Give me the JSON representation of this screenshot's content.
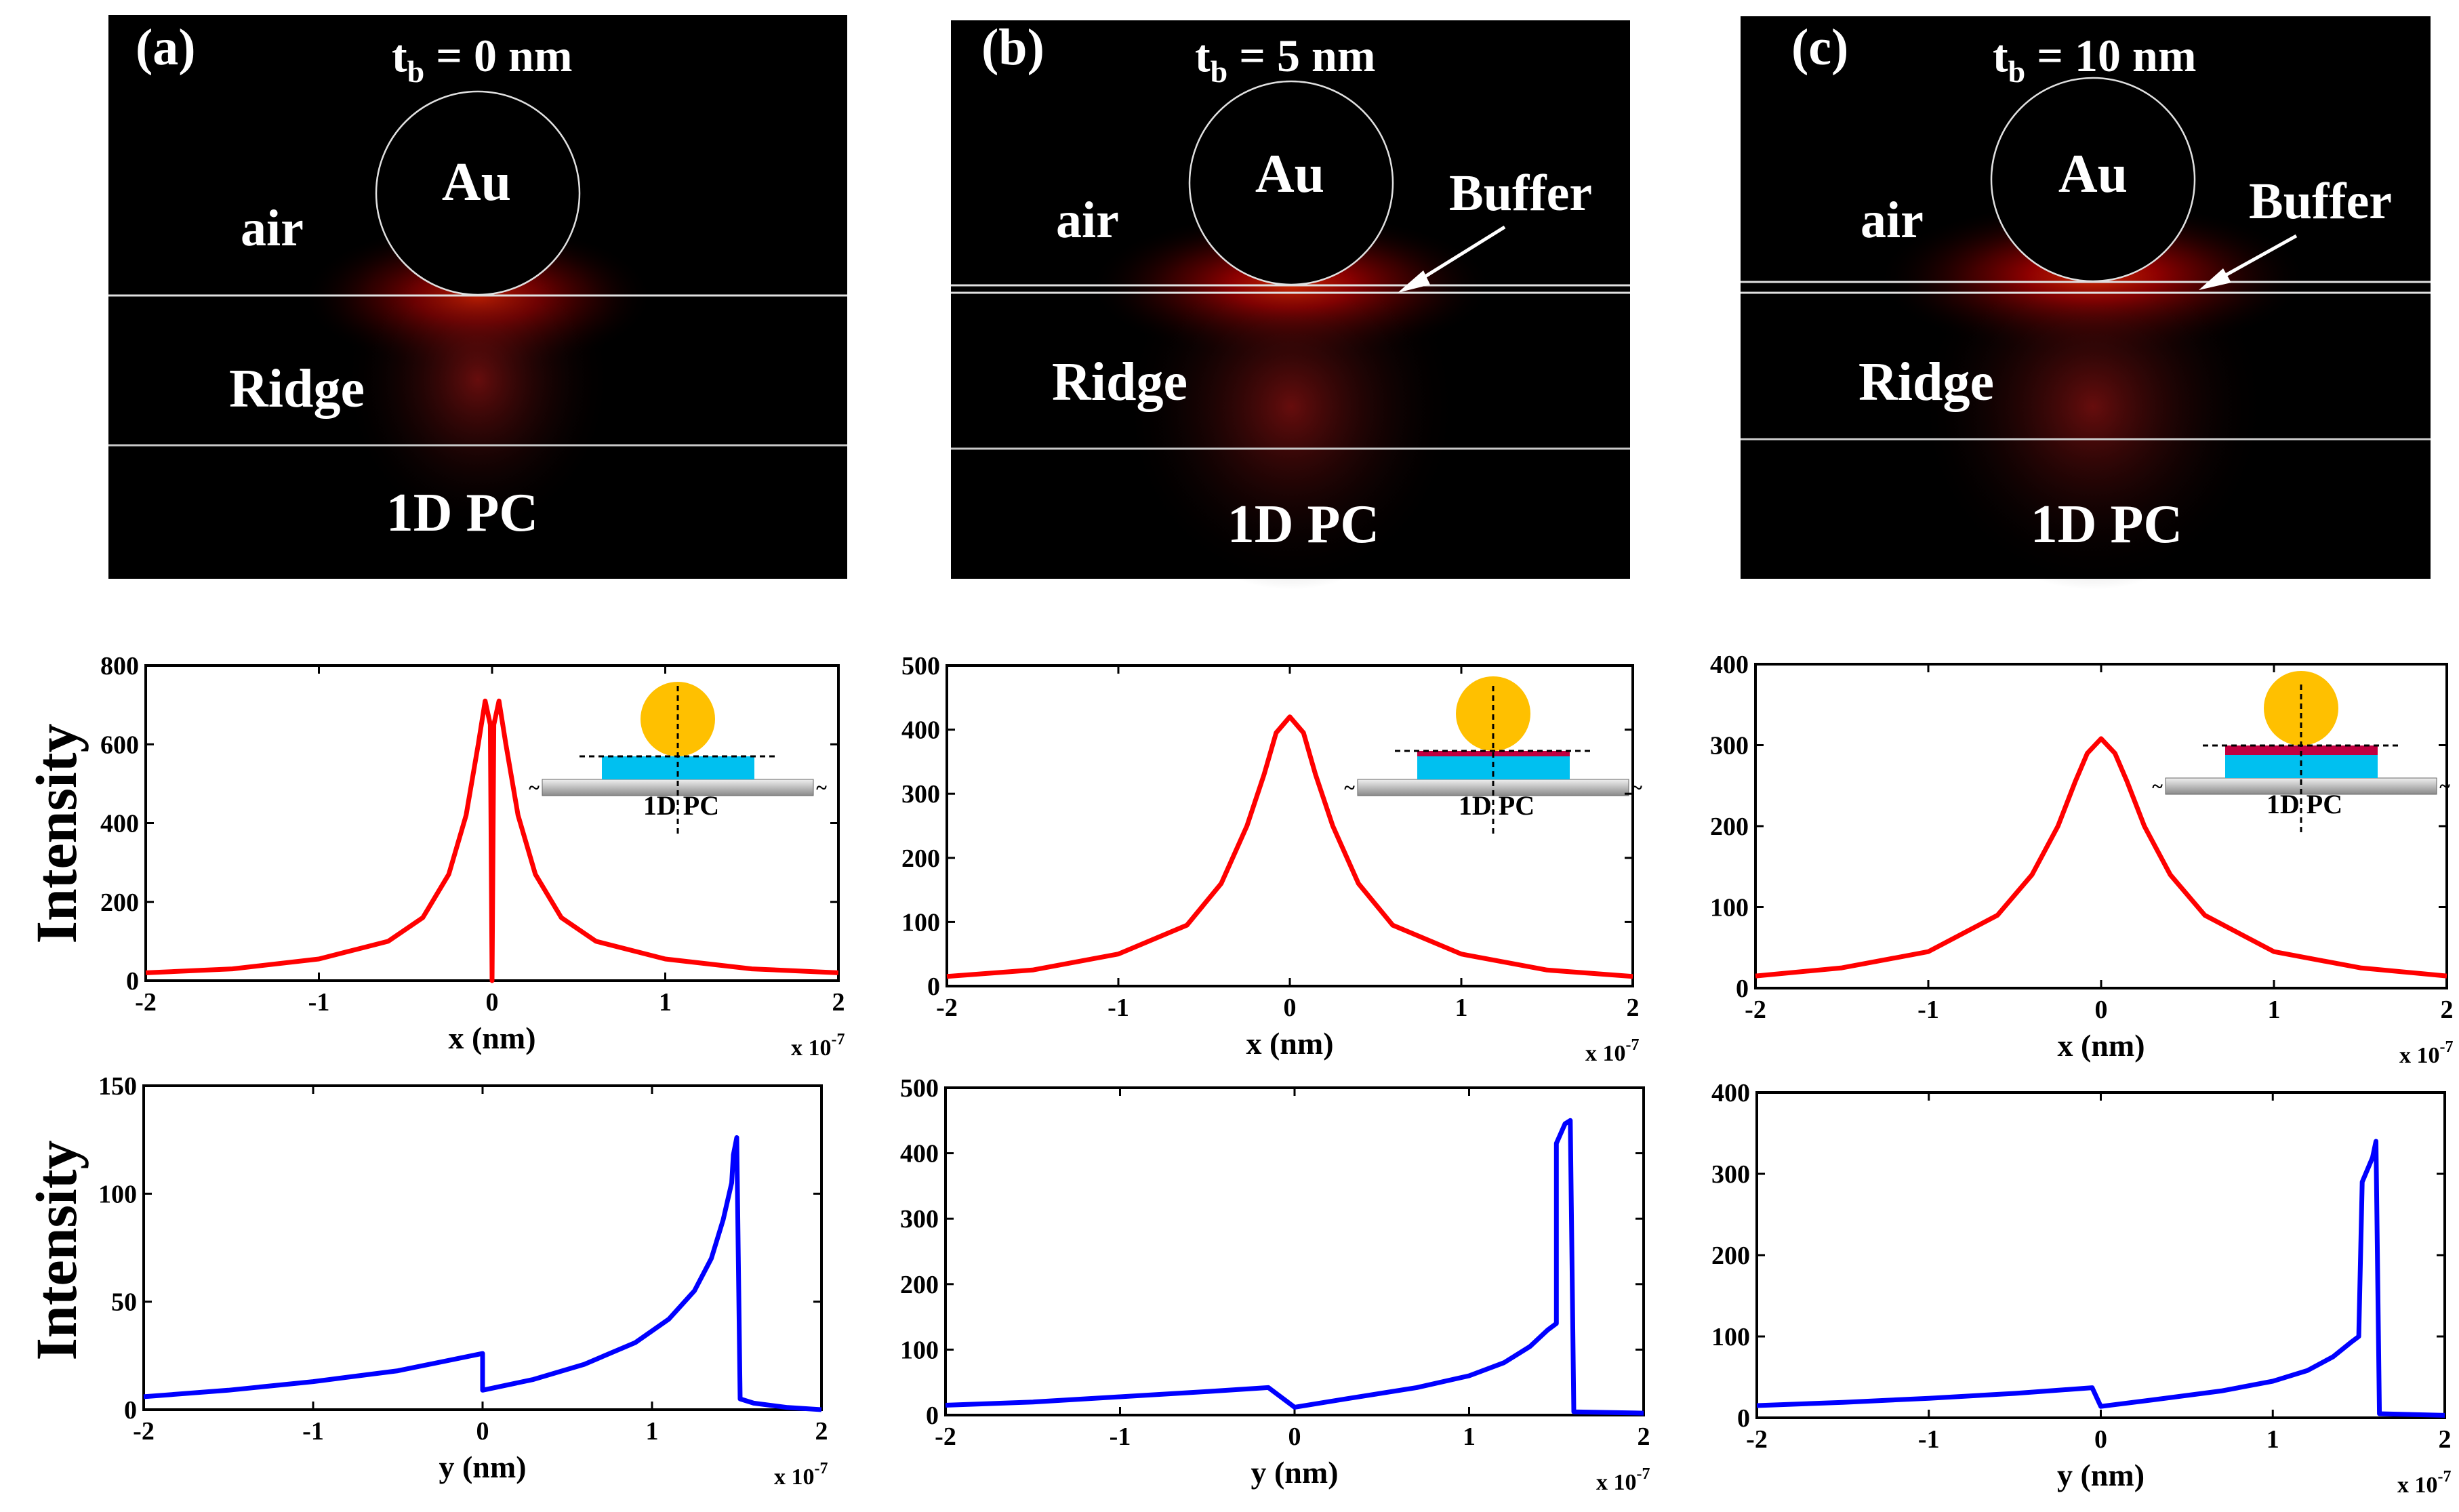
{
  "field_panels": [
    {
      "panel_label": "(a)",
      "thickness_label": "t",
      "thickness_sub": "b",
      "thickness_value": " = 0 nm",
      "regions": {
        "particle": "Au",
        "air": "air",
        "ridge": "Ridge",
        "substrate": "1D PC"
      },
      "buffer_label": null
    },
    {
      "panel_label": "(b)",
      "thickness_label": "t",
      "thickness_sub": "b",
      "thickness_value": " = 5 nm",
      "regions": {
        "particle": "Au",
        "air": "air",
        "ridge": "Ridge",
        "substrate": "1D PC"
      },
      "buffer_label": "Buffer"
    },
    {
      "panel_label": "(c)",
      "thickness_label": "t",
      "thickness_sub": "b",
      "thickness_value": " = 10 nm",
      "regions": {
        "particle": "Au",
        "air": "air",
        "ridge": "Ridge",
        "substrate": "1D PC"
      },
      "buffer_label": "Buffer"
    }
  ],
  "colors": {
    "field_bg": "#000000",
    "hotspot": "#ff1a00",
    "x_profile": "#ff0000",
    "y_profile": "#0000ff",
    "gold": "#ffc000",
    "ridge_fill": "#00c0f0",
    "buffer_fill": "#c00040",
    "substrate": "#c8c8c8"
  },
  "chart_data": [
    {
      "id": "x-profile-a",
      "type": "line",
      "xlabel": "x (nm)",
      "ylabel": "Intensity",
      "x_exponent": "x 10",
      "x_exponent_power": "-7",
      "xlim": [
        -2,
        2
      ],
      "ylim": [
        0,
        800
      ],
      "xticks": [
        "-2",
        "-1",
        "0",
        "1",
        "2"
      ],
      "yticks": [
        "0",
        "200",
        "400",
        "600",
        "800"
      ],
      "inset_label": "1D PC",
      "color": "#ff0000",
      "x": [
        -2,
        -1.5,
        -1,
        -0.6,
        -0.4,
        -0.25,
        -0.15,
        -0.08,
        -0.04,
        -0.01,
        0,
        0.01,
        0.04,
        0.08,
        0.15,
        0.25,
        0.4,
        0.6,
        1,
        1.5,
        2
      ],
      "y": [
        20,
        30,
        55,
        100,
        160,
        270,
        420,
        600,
        710,
        650,
        0,
        650,
        710,
        600,
        420,
        270,
        160,
        100,
        55,
        30,
        20
      ]
    },
    {
      "id": "x-profile-b",
      "type": "line",
      "xlabel": "x (nm)",
      "ylabel": "",
      "x_exponent": "x 10",
      "x_exponent_power": "-7",
      "xlim": [
        -2,
        2
      ],
      "ylim": [
        0,
        500
      ],
      "xticks": [
        "-2",
        "-1",
        "0",
        "1",
        "2"
      ],
      "yticks": [
        "0",
        "100",
        "200",
        "300",
        "400",
        "500"
      ],
      "inset_label": "1D PC",
      "color": "#ff0000",
      "x": [
        -2,
        -1.5,
        -1,
        -0.6,
        -0.4,
        -0.25,
        -0.15,
        -0.08,
        0,
        0.08,
        0.15,
        0.25,
        0.4,
        0.6,
        1,
        1.5,
        2
      ],
      "y": [
        15,
        25,
        50,
        95,
        160,
        250,
        330,
        395,
        420,
        395,
        330,
        250,
        160,
        95,
        50,
        25,
        15
      ]
    },
    {
      "id": "x-profile-c",
      "type": "line",
      "xlabel": "x (nm)",
      "ylabel": "",
      "x_exponent": "x 10",
      "x_exponent_power": "-7",
      "xlim": [
        -2,
        2
      ],
      "ylim": [
        0,
        400
      ],
      "xticks": [
        "-2",
        "-1",
        "0",
        "1",
        "2"
      ],
      "yticks": [
        "0",
        "100",
        "200",
        "300",
        "400"
      ],
      "inset_label": "1D PC",
      "color": "#ff0000",
      "x": [
        -2,
        -1.5,
        -1,
        -0.6,
        -0.4,
        -0.25,
        -0.15,
        -0.08,
        0,
        0.08,
        0.15,
        0.25,
        0.4,
        0.6,
        1,
        1.5,
        2
      ],
      "y": [
        15,
        25,
        45,
        90,
        140,
        200,
        255,
        290,
        308,
        290,
        255,
        200,
        140,
        90,
        45,
        25,
        15
      ]
    },
    {
      "id": "y-profile-a",
      "type": "line",
      "xlabel": "y (nm)",
      "ylabel": "Intensity",
      "x_exponent": "x 10",
      "x_exponent_power": "-7",
      "xlim": [
        -2,
        2
      ],
      "ylim": [
        0,
        150
      ],
      "xticks": [
        "-2",
        "-1",
        "0",
        "1",
        "2"
      ],
      "yticks": [
        "0",
        "50",
        "100",
        "150"
      ],
      "color": "#0000ff",
      "x": [
        -2,
        -1.5,
        -1,
        -0.5,
        0,
        0,
        0.3,
        0.6,
        0.9,
        1.1,
        1.25,
        1.35,
        1.42,
        1.47,
        1.48,
        1.5,
        1.52,
        1.6,
        1.8,
        2
      ],
      "y": [
        6,
        9,
        13,
        18,
        26,
        9,
        14,
        21,
        31,
        42,
        55,
        70,
        88,
        105,
        118,
        126,
        5,
        3,
        1,
        0
      ]
    },
    {
      "id": "y-profile-b",
      "type": "line",
      "xlabel": "y (nm)",
      "ylabel": "",
      "x_exponent": "x 10",
      "x_exponent_power": "-7",
      "xlim": [
        -2,
        2
      ],
      "ylim": [
        0,
        500
      ],
      "xticks": [
        "-2",
        "-1",
        "0",
        "1",
        "2"
      ],
      "yticks": [
        "0",
        "100",
        "200",
        "300",
        "400",
        "500"
      ],
      "color": "#0000ff",
      "x": [
        -2,
        -1.5,
        -1,
        -0.5,
        -0.15,
        0,
        0.3,
        0.7,
        1,
        1.2,
        1.35,
        1.45,
        1.5,
        1.5,
        1.55,
        1.58,
        1.6,
        2
      ],
      "y": [
        15,
        20,
        28,
        36,
        42,
        12,
        25,
        42,
        60,
        80,
        105,
        130,
        140,
        415,
        445,
        450,
        5,
        3
      ]
    },
    {
      "id": "y-profile-c",
      "type": "line",
      "xlabel": "y (nm)",
      "ylabel": "",
      "x_exponent": "x 10",
      "x_exponent_power": "-7",
      "xlim": [
        -2,
        2
      ],
      "ylim": [
        0,
        400
      ],
      "xticks": [
        "-2",
        "-1",
        "0",
        "1",
        "2"
      ],
      "yticks": [
        "0",
        "100",
        "200",
        "300",
        "400"
      ],
      "color": "#0000ff",
      "x": [
        -2,
        -1.5,
        -1,
        -0.5,
        -0.05,
        0,
        0.3,
        0.7,
        1,
        1.2,
        1.35,
        1.45,
        1.5,
        1.52,
        1.58,
        1.6,
        1.62,
        2
      ],
      "y": [
        15,
        19,
        24,
        30,
        37,
        14,
        22,
        33,
        45,
        58,
        75,
        92,
        100,
        290,
        320,
        340,
        5,
        3
      ]
    }
  ]
}
